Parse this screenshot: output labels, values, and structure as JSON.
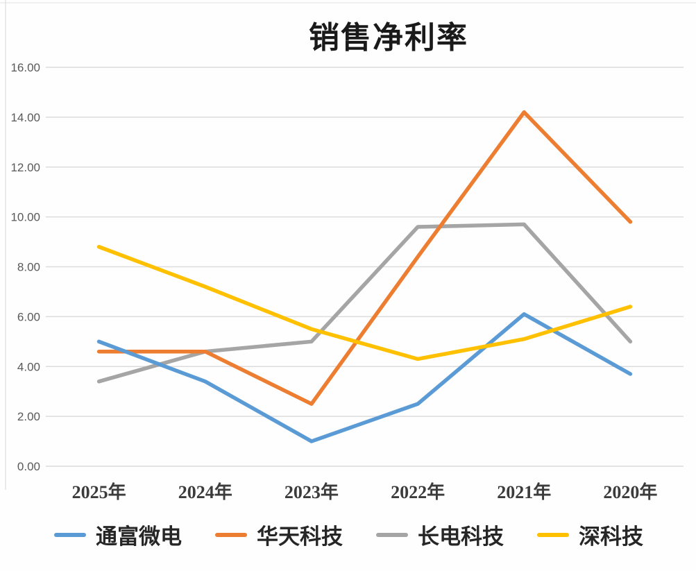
{
  "chart_data": {
    "type": "line",
    "title": "销售净利率",
    "categories": [
      "2025年",
      "2024年",
      "2023年",
      "2022年",
      "2021年",
      "2020年"
    ],
    "series": [
      {
        "name": "通富微电",
        "color": "#5B9BD5",
        "values": [
          5.0,
          3.4,
          1.0,
          2.5,
          6.1,
          3.7
        ]
      },
      {
        "name": "华天科技",
        "color": "#ED7D31",
        "values": [
          4.6,
          4.6,
          2.5,
          8.4,
          14.2,
          9.8
        ]
      },
      {
        "name": "长电科技",
        "color": "#A5A5A5",
        "values": [
          3.4,
          4.6,
          5.0,
          9.6,
          9.7,
          5.0
        ]
      },
      {
        "name": "深科技",
        "color": "#FFC000",
        "values": [
          8.8,
          7.2,
          5.5,
          4.3,
          5.1,
          6.4
        ]
      }
    ],
    "ylim": [
      0,
      16
    ],
    "ytick_step": 2,
    "ytick_labels": [
      "0.00",
      "2.00",
      "4.00",
      "6.00",
      "8.00",
      "10.00",
      "12.00",
      "14.00",
      "16.00"
    ],
    "grid": true,
    "gridline_color": "#dcdcdc",
    "legend_position": "bottom",
    "xlabel": "",
    "ylabel": ""
  }
}
